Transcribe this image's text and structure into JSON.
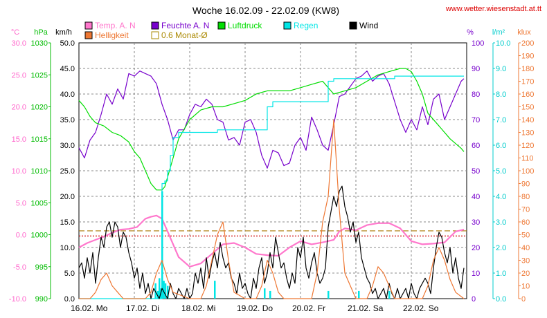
{
  "chart_data": {
    "type": "line",
    "title": "Woche 16.02.09 - 22.02.09 (KW8)",
    "source": "www.wetter.wiesenstadt.at.tt",
    "x_labels": [
      "16.02.  Mo",
      "17.02.  Di",
      "18.02.  Mi",
      "19.02.  Do",
      "20.02.  Fr",
      "21.02.  Sa",
      "22.02.  So"
    ],
    "x_range": [
      0,
      7
    ],
    "grid": true,
    "axes": {
      "temp": {
        "unit": "°C",
        "color": "#ff66cc",
        "range": [
          -10,
          30
        ],
        "ticks": [
          "30.0",
          "25.0",
          "20.0",
          "15.0",
          "10.0",
          "5.0",
          "0.0",
          "-5.0",
          "-10.0"
        ]
      },
      "press": {
        "unit": "hPa",
        "color": "#00bb00",
        "range": [
          990,
          1030
        ],
        "ticks": [
          "1030",
          "1025",
          "1020",
          "1015",
          "1010",
          "1005",
          "1000",
          "995",
          "990"
        ]
      },
      "wind": {
        "unit": "km/h",
        "color": "#000000",
        "range": [
          0,
          50
        ],
        "ticks": [
          "50.0",
          "45.0",
          "40.0",
          "35.0",
          "30.0",
          "25.0",
          "20.0",
          "15.0",
          "10.0",
          "5.0",
          "0.0"
        ]
      },
      "hum": {
        "unit": "%",
        "color": "#7700cc",
        "range": [
          0,
          100
        ],
        "ticks": [
          "100",
          "90",
          "80",
          "70",
          "60",
          "50",
          "40",
          "30",
          "20",
          "10",
          "0"
        ]
      },
      "rain": {
        "unit": "l/m²",
        "color": "#00cccc",
        "range": [
          0,
          10
        ],
        "ticks": [
          "10.0",
          "9.0",
          "8.0",
          "7.0",
          "6.0",
          "5.0",
          "4.0",
          "3.0",
          "2.0",
          "1.0",
          "0.0"
        ]
      },
      "light": {
        "unit": "klux",
        "color": "#ee7733",
        "range": [
          0,
          200
        ],
        "ticks": [
          "200",
          "190",
          "180",
          "170",
          "160",
          "150",
          "140",
          "130",
          "120",
          "110",
          "100",
          "90",
          "80",
          "70",
          "60",
          "50",
          "40",
          "30",
          "20",
          "10",
          "0"
        ]
      }
    },
    "legend": [
      {
        "name": "Temp. A. N",
        "color": "#ff77cc"
      },
      {
        "name": "Feuchte A. N",
        "color": "#7700cc"
      },
      {
        "name": "Luftdruck",
        "color": "#00dd00"
      },
      {
        "name": "Regen",
        "color": "#00e5e5"
      },
      {
        "name": "Wind",
        "color": "#000000"
      },
      {
        "name": "Helligkeit",
        "color": "#ee7733"
      },
      {
        "name": "0.6 Monat-Ø",
        "color": "#aa8800"
      }
    ],
    "reference_lines": [
      {
        "axis": "temp",
        "value": 0.6,
        "color": "#aa7700"
      },
      {
        "axis": "temp",
        "value": -0.2,
        "color": "#cc0000"
      }
    ],
    "series": [
      {
        "name": "Temp. A. N",
        "axis": "temp",
        "color": "#ff77cc",
        "x": [
          0,
          0.15,
          0.3,
          0.45,
          0.6,
          0.75,
          0.9,
          1.05,
          1.2,
          1.3,
          1.4,
          1.5,
          1.55,
          1.65,
          1.8,
          2,
          2.2,
          2.4,
          2.6,
          2.8,
          3,
          3.2,
          3.4,
          3.6,
          3.8,
          4,
          4.2,
          4.4,
          4.6,
          4.7,
          4.8,
          5,
          5.2,
          5.4,
          5.6,
          5.8,
          6,
          6.2,
          6.4,
          6.6,
          6.8,
          6.95
        ],
        "y": [
          -2,
          -1.3,
          -0.8,
          -0.3,
          0.3,
          0.8,
          0.9,
          1.2,
          2.5,
          2.8,
          3,
          2.5,
          1.5,
          -0.5,
          -3.5,
          -5,
          -4.5,
          -3,
          -1.5,
          -1.3,
          -2,
          -3,
          -3.2,
          -3.3,
          -2,
          -1,
          -1.5,
          -1.2,
          -0.8,
          0.5,
          1,
          0.7,
          1.5,
          1.8,
          1.8,
          1,
          -1,
          -1.5,
          -1.4,
          -1.2,
          0.5,
          0.8
        ]
      },
      {
        "name": "Feuchte A. N",
        "axis": "hum",
        "color": "#7700cc",
        "x": [
          0,
          0.1,
          0.2,
          0.3,
          0.4,
          0.5,
          0.6,
          0.7,
          0.8,
          0.9,
          1,
          1.1,
          1.2,
          1.3,
          1.4,
          1.5,
          1.6,
          1.7,
          1.8,
          1.9,
          2,
          2.1,
          2.2,
          2.3,
          2.4,
          2.5,
          2.6,
          2.7,
          2.8,
          2.9,
          3,
          3.1,
          3.2,
          3.3,
          3.4,
          3.5,
          3.6,
          3.7,
          3.8,
          3.9,
          4,
          4.1,
          4.2,
          4.3,
          4.4,
          4.5,
          4.6,
          4.7,
          4.8,
          4.9,
          5,
          5.1,
          5.2,
          5.3,
          5.4,
          5.5,
          5.6,
          5.7,
          5.8,
          5.9,
          6,
          6.1,
          6.2,
          6.3,
          6.4,
          6.5,
          6.6,
          6.7,
          6.8,
          6.9,
          6.95
        ],
        "y": [
          59,
          55,
          62,
          65,
          72,
          80,
          76,
          82,
          78,
          88,
          87,
          89,
          88,
          87,
          84,
          76,
          70,
          62,
          66,
          66,
          72,
          76,
          75,
          78,
          76,
          70,
          69,
          62,
          63,
          60,
          69,
          70,
          65,
          56,
          51,
          58,
          57,
          52,
          53,
          60,
          63,
          58,
          71,
          66,
          60,
          58,
          68,
          79,
          80,
          83,
          86,
          87,
          89,
          85,
          87,
          88,
          84,
          77,
          70,
          65,
          70,
          66,
          75,
          68,
          78,
          80,
          70,
          75,
          80,
          85,
          86
        ]
      },
      {
        "name": "Luftdruck",
        "axis": "press",
        "color": "#00dd00",
        "x": [
          0,
          0.1,
          0.2,
          0.3,
          0.45,
          0.6,
          0.75,
          0.9,
          1,
          1.1,
          1.2,
          1.3,
          1.4,
          1.5,
          1.55,
          1.6,
          1.7,
          1.8,
          2,
          2.2,
          2.4,
          2.6,
          2.8,
          3,
          3.2,
          3.4,
          3.6,
          3.8,
          4,
          4.2,
          4.4,
          4.5,
          4.6,
          4.8,
          5,
          5.2,
          5.4,
          5.6,
          5.8,
          5.9,
          6,
          6.1,
          6.2,
          6.3,
          6.5,
          6.7,
          6.9,
          6.95
        ],
        "y": [
          1021,
          1020,
          1018.5,
          1017.5,
          1017,
          1016,
          1015.5,
          1014.5,
          1013,
          1012,
          1010,
          1008,
          1007,
          1007,
          1007.5,
          1009,
          1012,
          1015,
          1018,
          1019.5,
          1020,
          1020,
          1020.5,
          1021,
          1022,
          1022.5,
          1022.5,
          1022.5,
          1023,
          1023.5,
          1024,
          1023,
          1022,
          1022.5,
          1023,
          1024,
          1025,
          1025.5,
          1026,
          1026,
          1025.5,
          1024,
          1022,
          1019,
          1017,
          1015,
          1013.5,
          1013
        ]
      },
      {
        "name": "Regen",
        "axis": "rain",
        "color": "#00e5e5",
        "step": true,
        "x": [
          0,
          1.45,
          1.5,
          1.55,
          1.6,
          1.65,
          1.7,
          1.8,
          2.4,
          2.5,
          3.4,
          3.5,
          4.5,
          4.6,
          5.6,
          5.7,
          6.95
        ],
        "y": [
          0,
          0,
          4.5,
          4.6,
          5.0,
          5.6,
          6.3,
          6.5,
          6.5,
          6.6,
          7.5,
          7.7,
          8.5,
          8.6,
          8.6,
          8.7,
          8.7
        ]
      },
      {
        "name": "Regen-Intervall",
        "axis": "rain",
        "color": "#00e5e5",
        "bars": true,
        "x": [
          1.38,
          1.42,
          1.45,
          1.48,
          1.5,
          1.53,
          1.56,
          1.6,
          2.45,
          3.35,
          3.45,
          4.5,
          5.05,
          5.6
        ],
        "y": [
          0.6,
          0.3,
          0.8,
          0.4,
          4.2,
          0.7,
          0.6,
          0.5,
          0.7,
          0.4,
          0.3,
          0.3,
          0.3,
          0.3
        ]
      },
      {
        "name": "Wind",
        "axis": "wind",
        "color": "#000000",
        "x": [
          0,
          0.05,
          0.1,
          0.15,
          0.2,
          0.25,
          0.3,
          0.35,
          0.4,
          0.45,
          0.5,
          0.55,
          0.6,
          0.65,
          0.7,
          0.75,
          0.8,
          0.85,
          0.9,
          0.95,
          1,
          1.05,
          1.1,
          1.15,
          1.2,
          1.25,
          1.3,
          1.35,
          1.4,
          1.45,
          1.5,
          1.55,
          1.6,
          1.65,
          1.7,
          1.75,
          1.8,
          1.85,
          1.9,
          1.95,
          2,
          2.05,
          2.1,
          2.15,
          2.2,
          2.25,
          2.3,
          2.35,
          2.4,
          2.45,
          2.5,
          2.55,
          2.6,
          2.65,
          2.7,
          2.75,
          2.8,
          2.85,
          2.9,
          2.95,
          3,
          3.05,
          3.1,
          3.15,
          3.2,
          3.25,
          3.3,
          3.35,
          3.4,
          3.45,
          3.5,
          3.55,
          3.6,
          3.65,
          3.7,
          3.75,
          3.8,
          3.85,
          3.9,
          3.95,
          4,
          4.05,
          4.1,
          4.15,
          4.2,
          4.25,
          4.3,
          4.35,
          4.4,
          4.45,
          4.5,
          4.55,
          4.6,
          4.65,
          4.7,
          4.75,
          4.8,
          4.85,
          4.9,
          4.95,
          5,
          5.05,
          5.1,
          5.15,
          5.2,
          5.25,
          5.3,
          5.35,
          5.4,
          5.45,
          5.5,
          5.55,
          5.6,
          5.65,
          5.7,
          5.75,
          5.8,
          5.85,
          5.9,
          5.95,
          6,
          6.05,
          6.1,
          6.15,
          6.2,
          6.25,
          6.3,
          6.35,
          6.4,
          6.45,
          6.5,
          6.55,
          6.6,
          6.65,
          6.7,
          6.75,
          6.8,
          6.85,
          6.9,
          6.95
        ],
        "y": [
          6,
          7,
          4,
          8,
          5,
          9,
          3,
          8,
          12,
          10,
          14,
          15,
          12,
          15,
          14,
          10,
          13,
          12,
          9,
          7,
          4,
          6,
          2,
          5,
          1,
          3,
          0,
          2,
          1,
          0,
          2,
          1,
          0,
          3,
          1,
          0,
          2,
          1,
          0,
          2,
          0,
          1,
          5,
          3,
          6,
          2,
          8,
          4,
          7,
          9,
          6,
          11,
          8,
          6,
          7,
          4,
          3,
          1,
          5,
          2,
          3,
          1,
          0,
          4,
          2,
          6,
          8,
          3,
          5,
          9,
          6,
          12,
          9,
          6,
          7,
          4,
          2,
          5,
          3,
          10,
          8,
          12,
          6,
          4,
          7,
          9,
          5,
          3,
          4,
          6,
          14,
          17,
          20,
          18,
          21,
          22,
          18,
          16,
          13,
          15,
          11,
          13,
          8,
          6,
          4,
          3,
          1,
          2,
          0,
          1,
          2,
          0,
          3,
          1,
          0,
          2,
          0,
          1,
          2,
          0,
          3,
          1,
          0,
          2,
          3,
          4,
          3,
          1,
          6,
          10,
          13,
          12,
          9,
          7,
          10,
          5,
          8,
          4,
          2,
          6
        ]
      },
      {
        "name": "Helligkeit",
        "axis": "light",
        "color": "#ee7733",
        "x": [
          0,
          0.2,
          0.3,
          0.4,
          0.5,
          0.6,
          0.7,
          0.8,
          1,
          1.2,
          1.3,
          1.4,
          1.5,
          1.6,
          1.7,
          2,
          2.2,
          2.3,
          2.4,
          2.5,
          2.6,
          2.7,
          2.8,
          3,
          3.2,
          3.3,
          3.4,
          3.5,
          3.6,
          3.7,
          3.8,
          4,
          4.2,
          4.3,
          4.4,
          4.5,
          4.6,
          4.7,
          4.8,
          5,
          5.2,
          5.3,
          5.4,
          5.5,
          5.6,
          5.7,
          5.8,
          6,
          6.2,
          6.3,
          6.4,
          6.5,
          6.6,
          6.7,
          6.8,
          6.95
        ],
        "y": [
          0,
          0,
          5,
          15,
          20,
          10,
          5,
          0,
          0,
          0,
          5,
          20,
          30,
          15,
          5,
          0,
          0,
          10,
          30,
          50,
          60,
          30,
          5,
          0,
          0,
          10,
          30,
          20,
          5,
          0,
          0,
          0,
          0,
          20,
          60,
          80,
          140,
          70,
          20,
          0,
          0,
          10,
          25,
          20,
          10,
          0,
          0,
          0,
          0,
          10,
          30,
          40,
          30,
          15,
          5,
          0
        ]
      }
    ]
  }
}
